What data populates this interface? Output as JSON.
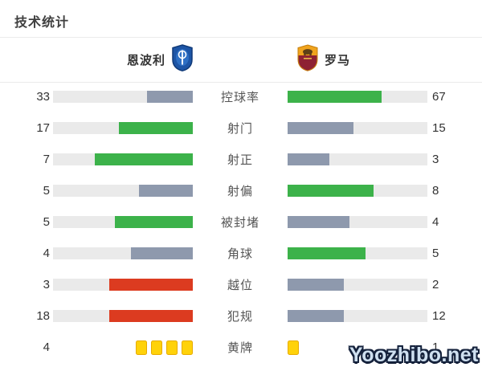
{
  "title": "技术统计",
  "teams": {
    "home": {
      "name": "恩波利"
    },
    "away": {
      "name": "罗马"
    }
  },
  "colors": {
    "green": "#3cb24a",
    "grey": "#8e99ad",
    "red": "#dc3b20",
    "track": "#eaeaea",
    "yellow": "#ffd20a",
    "yellow_border": "#e7ab00"
  },
  "stats": [
    {
      "label": "控球率",
      "home": 33,
      "away": 67,
      "home_color": "grey",
      "away_color": "green",
      "type": "bar"
    },
    {
      "label": "射门",
      "home": 17,
      "away": 15,
      "home_color": "green",
      "away_color": "grey",
      "type": "bar"
    },
    {
      "label": "射正",
      "home": 7,
      "away": 3,
      "home_color": "green",
      "away_color": "grey",
      "type": "bar"
    },
    {
      "label": "射偏",
      "home": 5,
      "away": 8,
      "home_color": "grey",
      "away_color": "green",
      "type": "bar"
    },
    {
      "label": "被封堵",
      "home": 5,
      "away": 4,
      "home_color": "green",
      "away_color": "grey",
      "type": "bar"
    },
    {
      "label": "角球",
      "home": 4,
      "away": 5,
      "home_color": "grey",
      "away_color": "green",
      "type": "bar"
    },
    {
      "label": "越位",
      "home": 3,
      "away": 2,
      "home_color": "red",
      "away_color": "grey",
      "type": "bar"
    },
    {
      "label": "犯规",
      "home": 18,
      "away": 12,
      "home_color": "red",
      "away_color": "grey",
      "type": "bar"
    },
    {
      "label": "黄牌",
      "home": 4,
      "away": 1,
      "home_color": "yellow",
      "away_color": "yellow",
      "type": "cards"
    }
  ],
  "chart_data": {
    "type": "bar",
    "title": "技术统计",
    "orientation": "horizontal-paired",
    "categories": [
      "控球率",
      "射门",
      "射正",
      "射偏",
      "被封堵",
      "角球",
      "越位",
      "犯规",
      "黄牌"
    ],
    "series": [
      {
        "name": "恩波利",
        "values": [
          33,
          17,
          7,
          5,
          5,
          4,
          3,
          18,
          4
        ]
      },
      {
        "name": "罗马",
        "values": [
          67,
          15,
          3,
          8,
          4,
          5,
          2,
          12,
          1
        ]
      }
    ],
    "notes": "bars grow outward from center labels; fill fraction = value/(home+away); green = better side, grey = worse side, red = negative stat leader, yellow cards shown as card icons"
  },
  "watermark": "Yoozhibo.net"
}
